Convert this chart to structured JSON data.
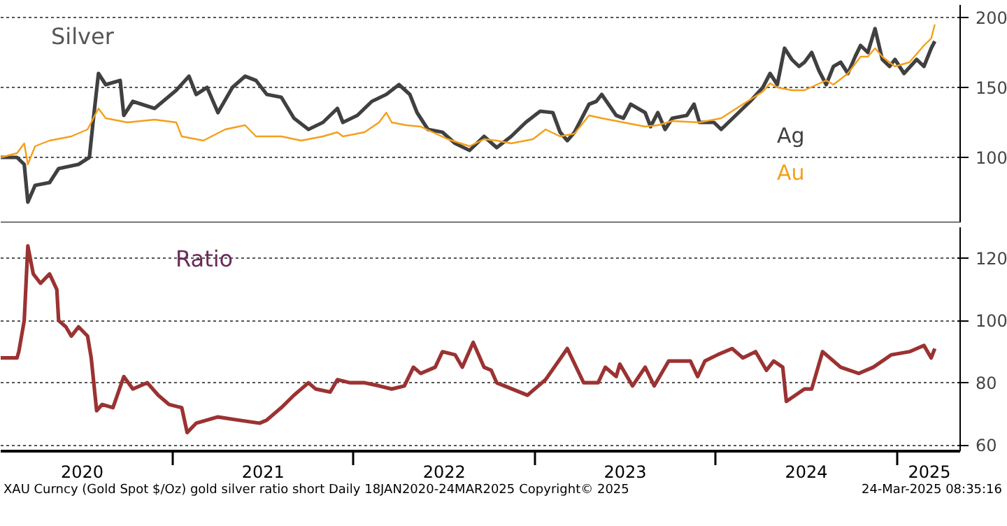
{
  "chart_data": [
    {
      "type": "line",
      "title": "Silver",
      "xlim": [
        2020.05,
        2025.35
      ],
      "ylim": [
        53,
        209
      ],
      "yticks": [
        100,
        150,
        200
      ],
      "grid": "y",
      "tick_labels": "y",
      "line_style": "solid",
      "series": [
        {
          "name": "Ag",
          "color": "#404040",
          "x": [
            2020.05,
            2020.14,
            2020.18,
            2020.2,
            2020.24,
            2020.32,
            2020.37,
            2020.48,
            2020.54,
            2020.56,
            2020.59,
            2020.63,
            2020.71,
            2020.73,
            2020.78,
            2020.9,
            2021.02,
            2021.09,
            2021.13,
            2021.19,
            2021.25,
            2021.33,
            2021.4,
            2021.46,
            2021.52,
            2021.6,
            2021.67,
            2021.75,
            2021.83,
            2021.91,
            2021.94,
            2022.02,
            2022.1,
            2022.18,
            2022.25,
            2022.31,
            2022.35,
            2022.41,
            2022.49,
            2022.56,
            2022.64,
            2022.72,
            2022.79,
            2022.87,
            2022.95,
            2023.03,
            2023.1,
            2023.14,
            2023.18,
            2023.22,
            2023.26,
            2023.3,
            2023.34,
            2023.37,
            2023.45,
            2023.49,
            2023.53,
            2023.61,
            2023.64,
            2023.68,
            2023.72,
            2023.76,
            2023.84,
            2023.88,
            2023.91,
            2023.99,
            2024.03,
            2024.11,
            2024.19,
            2024.26,
            2024.3,
            2024.34,
            2024.38,
            2024.42,
            2024.46,
            2024.49,
            2024.53,
            2024.57,
            2024.61,
            2024.65,
            2024.69,
            2024.73,
            2024.77,
            2024.8,
            2024.84,
            2024.88,
            2024.92,
            2024.96,
            2024.99,
            2025.04,
            2025.11,
            2025.15,
            2025.19,
            2025.21
          ],
          "values": [
            100,
            100,
            95,
            68,
            80,
            82,
            92,
            95,
            100,
            125,
            160,
            152,
            155,
            130,
            140,
            135,
            148,
            158,
            145,
            150,
            132,
            150,
            158,
            155,
            145,
            143,
            128,
            120,
            125,
            135,
            125,
            130,
            140,
            145,
            152,
            145,
            132,
            120,
            118,
            110,
            105,
            115,
            107,
            115,
            125,
            133,
            132,
            118,
            112,
            118,
            128,
            138,
            140,
            145,
            130,
            128,
            138,
            132,
            122,
            132,
            120,
            128,
            130,
            138,
            125,
            125,
            120,
            130,
            140,
            150,
            160,
            152,
            178,
            170,
            165,
            168,
            175,
            162,
            152,
            165,
            168,
            160,
            172,
            180,
            175,
            192,
            170,
            165,
            170,
            160,
            170,
            165,
            178,
            183
          ]
        },
        {
          "name": "Au",
          "color": "#f59f1a",
          "x": [
            2020.05,
            2020.14,
            2020.18,
            2020.2,
            2020.24,
            2020.32,
            2020.44,
            2020.53,
            2020.59,
            2020.63,
            2020.75,
            2020.9,
            2021.02,
            2021.05,
            2021.17,
            2021.29,
            2021.4,
            2021.46,
            2021.6,
            2021.71,
            2021.83,
            2021.91,
            2021.94,
            2022.06,
            2022.14,
            2022.18,
            2022.21,
            2022.29,
            2022.37,
            2022.52,
            2022.64,
            2022.72,
            2022.79,
            2022.87,
            2022.99,
            2023.06,
            2023.14,
            2023.22,
            2023.3,
            2023.37,
            2023.49,
            2023.61,
            2023.68,
            2023.76,
            2023.91,
            2024.03,
            2024.15,
            2024.26,
            2024.3,
            2024.34,
            2024.42,
            2024.49,
            2024.61,
            2024.65,
            2024.73,
            2024.8,
            2024.84,
            2024.88,
            2024.92,
            2024.99,
            2025.07,
            2025.15,
            2025.19,
            2025.21
          ],
          "values": [
            100,
            103,
            110,
            95,
            108,
            112,
            115,
            120,
            135,
            128,
            125,
            127,
            125,
            115,
            112,
            120,
            123,
            115,
            115,
            112,
            115,
            118,
            115,
            118,
            125,
            132,
            125,
            123,
            122,
            113,
            108,
            113,
            112,
            110,
            113,
            120,
            115,
            117,
            130,
            128,
            125,
            122,
            123,
            126,
            125,
            128,
            138,
            147,
            153,
            150,
            148,
            148,
            155,
            152,
            160,
            172,
            172,
            178,
            172,
            165,
            168,
            180,
            185,
            195
          ]
        }
      ]
    },
    {
      "type": "line",
      "title": "Ratio",
      "xlim": [
        2020.05,
        2025.35
      ],
      "ylim": [
        58,
        130
      ],
      "yticks": [
        60,
        80,
        100,
        120
      ],
      "grid": "y",
      "line_style": "solid",
      "xticks": [
        {
          "value": 2020.5,
          "label": "2020"
        },
        {
          "value": 2021,
          "label": null
        },
        {
          "value": 2021.5,
          "label": "2021"
        },
        {
          "value": 2022,
          "label": null
        },
        {
          "value": 2022.5,
          "label": "2022"
        },
        {
          "value": 2023,
          "label": null
        },
        {
          "value": 2023.5,
          "label": "2023"
        },
        {
          "value": 2024,
          "label": null
        },
        {
          "value": 2024.5,
          "label": "2024"
        },
        {
          "value": 2025,
          "label": null
        },
        {
          "value": 2025.18,
          "label": "2025"
        }
      ],
      "annotations": [
        "XAU Curncy (Gold Spot  $/Oz) gold silver ratio short  Daily 18JAN2020-24MAR2025",
        "Copyright© 2025",
        "24-Mar-2025 08:35:16"
      ],
      "series": [
        {
          "color": "#9b3232",
          "x": [
            2020.05,
            2020.14,
            2020.15,
            2020.18,
            2020.2,
            2020.23,
            2020.27,
            2020.32,
            2020.36,
            2020.37,
            2020.41,
            2020.44,
            2020.48,
            2020.53,
            2020.55,
            2020.58,
            2020.61,
            2020.67,
            2020.73,
            2020.78,
            2020.86,
            2020.92,
            2020.98,
            2021.05,
            2021.08,
            2021.13,
            2021.25,
            2021.36,
            2021.48,
            2021.52,
            2021.6,
            2021.67,
            2021.71,
            2021.75,
            2021.79,
            2021.87,
            2021.91,
            2021.98,
            2022.06,
            2022.14,
            2022.21,
            2022.28,
            2022.33,
            2022.37,
            2022.45,
            2022.49,
            2022.56,
            2022.6,
            2022.66,
            2022.72,
            2022.76,
            2022.79,
            2022.96,
            2023.06,
            2023.18,
            2023.27,
            2023.35,
            2023.39,
            2023.45,
            2023.47,
            2023.54,
            2023.61,
            2023.66,
            2023.72,
            2023.74,
            2023.86,
            2023.9,
            2023.94,
            2024.01,
            2024.09,
            2024.15,
            2024.22,
            2024.28,
            2024.32,
            2024.37,
            2024.39,
            2024.49,
            2024.53,
            2024.59,
            2024.69,
            2024.79,
            2024.87,
            2024.97,
            2025.07,
            2025.15,
            2025.19,
            2025.21
          ],
          "values": [
            88,
            88,
            90,
            100,
            124,
            115,
            112,
            115,
            110,
            100,
            98,
            95,
            98,
            95,
            88,
            71,
            73,
            72,
            82,
            78,
            80,
            76,
            73,
            72,
            64,
            67,
            69,
            68,
            67,
            68,
            72,
            76,
            78,
            80,
            78,
            77,
            81,
            80,
            80,
            79,
            78,
            79,
            85,
            83,
            85,
            90,
            89,
            85,
            93,
            85,
            84,
            80,
            76,
            81,
            91,
            80,
            80,
            85,
            82,
            86,
            79,
            85,
            79,
            85,
            87,
            87,
            82,
            87,
            89,
            91,
            88,
            90,
            84,
            87,
            85,
            74,
            78,
            78,
            90,
            85,
            83,
            85,
            89,
            90,
            92,
            88,
            91
          ]
        }
      ]
    }
  ]
}
